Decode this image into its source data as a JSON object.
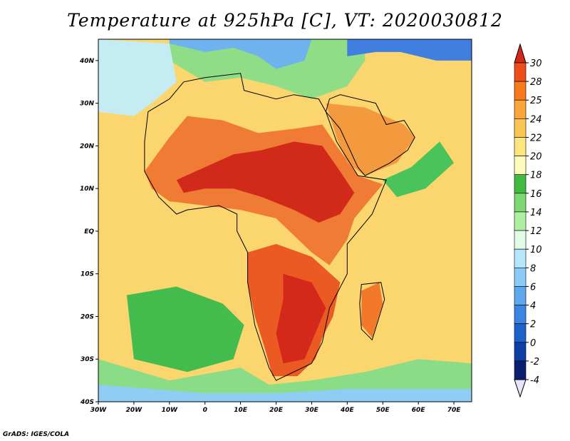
{
  "title": "Temperature at 925hPa [C], VT: 2020030812",
  "credit": "GrADS: IGES/COLA",
  "map": {
    "projection": "lat-lon",
    "lon_range": [
      -30,
      75
    ],
    "lat_range": [
      -40,
      45
    ],
    "lon_ticks": [
      {
        "value": -30,
        "label": "30W"
      },
      {
        "value": -20,
        "label": "20W"
      },
      {
        "value": -10,
        "label": "10W"
      },
      {
        "value": 0,
        "label": "0"
      },
      {
        "value": 10,
        "label": "10E"
      },
      {
        "value": 20,
        "label": "20E"
      },
      {
        "value": 30,
        "label": "30E"
      },
      {
        "value": 40,
        "label": "40E"
      },
      {
        "value": 50,
        "label": "50E"
      },
      {
        "value": 60,
        "label": "60E"
      },
      {
        "value": 70,
        "label": "70E"
      }
    ],
    "lat_ticks": [
      {
        "value": 40,
        "label": "40N"
      },
      {
        "value": 30,
        "label": "30N"
      },
      {
        "value": 20,
        "label": "20N"
      },
      {
        "value": 10,
        "label": "10N"
      },
      {
        "value": 0,
        "label": "EQ"
      },
      {
        "value": -10,
        "label": "10S"
      },
      {
        "value": -20,
        "label": "20S"
      },
      {
        "value": -30,
        "label": "30S"
      },
      {
        "value": -40,
        "label": "40S"
      }
    ],
    "background_color": "#fbd56e"
  },
  "colorbar": {
    "labels": [
      "30",
      "28",
      "25",
      "24",
      "22",
      "20",
      "18",
      "16",
      "14",
      "12",
      "10",
      "8",
      "6",
      "4",
      "2",
      "0",
      "-2",
      "-4"
    ],
    "colors": [
      "#d62818",
      "#ee4e1a",
      "#f77a1d",
      "#fba53a",
      "#fbc556",
      "#fde580",
      "#fffbbc",
      "#40bb3e",
      "#7bd873",
      "#aef0a2",
      "#e2fbe6",
      "#b5e6fb",
      "#8bcbf8",
      "#5ea9ee",
      "#3b86e2",
      "#1c62cb",
      "#0e3fa4",
      "#0b1f70",
      "#e6e4fa"
    ]
  },
  "regions": [
    {
      "name": "northern-africa-hot",
      "color": "#f07b34",
      "points": [
        [
          -17,
          14
        ],
        [
          -10,
          22
        ],
        [
          -5,
          27
        ],
        [
          5,
          26
        ],
        [
          15,
          23
        ],
        [
          25,
          24
        ],
        [
          33,
          25
        ],
        [
          37,
          20
        ],
        [
          43,
          13
        ],
        [
          50,
          11
        ],
        [
          42,
          3
        ],
        [
          40,
          -2
        ],
        [
          35,
          -8
        ],
        [
          30,
          -5
        ],
        [
          20,
          3
        ],
        [
          10,
          5
        ],
        [
          0,
          6
        ],
        [
          -10,
          7
        ],
        [
          -15,
          10
        ]
      ]
    },
    {
      "name": "sahel-core",
      "color": "#d22a1a",
      "points": [
        [
          -8,
          12
        ],
        [
          0,
          15
        ],
        [
          8,
          18
        ],
        [
          16,
          19
        ],
        [
          25,
          21
        ],
        [
          33,
          20
        ],
        [
          38,
          14
        ],
        [
          42,
          9
        ],
        [
          38,
          4
        ],
        [
          32,
          2
        ],
        [
          25,
          5
        ],
        [
          16,
          8
        ],
        [
          8,
          10
        ],
        [
          0,
          10
        ],
        [
          -6,
          9
        ]
      ]
    },
    {
      "name": "southern-africa-hot",
      "color": "#ec5a24",
      "points": [
        [
          12,
          -5
        ],
        [
          20,
          -3
        ],
        [
          30,
          -6
        ],
        [
          38,
          -12
        ],
        [
          36,
          -20
        ],
        [
          33,
          -25
        ],
        [
          31,
          -30
        ],
        [
          26,
          -34
        ],
        [
          19,
          -34
        ],
        [
          17,
          -28
        ],
        [
          14,
          -20
        ],
        [
          12,
          -12
        ]
      ]
    },
    {
      "name": "southern-interior-core",
      "color": "#d4281a",
      "points": [
        [
          22,
          -10
        ],
        [
          30,
          -12
        ],
        [
          34,
          -18
        ],
        [
          31,
          -24
        ],
        [
          28,
          -30
        ],
        [
          22,
          -31
        ],
        [
          20,
          -24
        ],
        [
          22,
          -16
        ]
      ]
    },
    {
      "name": "arabia-warm",
      "color": "#f49a3e",
      "points": [
        [
          34,
          30
        ],
        [
          45,
          29
        ],
        [
          56,
          25
        ],
        [
          59,
          22
        ],
        [
          54,
          16
        ],
        [
          45,
          13
        ],
        [
          40,
          16
        ],
        [
          37,
          22
        ]
      ]
    },
    {
      "name": "madagascar-warm",
      "color": "#f2792a",
      "points": [
        [
          44,
          -14
        ],
        [
          49,
          -12
        ],
        [
          50,
          -17
        ],
        [
          47,
          -25
        ],
        [
          44,
          -22
        ]
      ]
    },
    {
      "name": "south-atlantic-cool",
      "color": "#44bc4d",
      "points": [
        [
          -22,
          -15
        ],
        [
          -8,
          -13
        ],
        [
          5,
          -17
        ],
        [
          11,
          -22
        ],
        [
          8,
          -30
        ],
        [
          -5,
          -33
        ],
        [
          -20,
          -30
        ]
      ]
    },
    {
      "name": "southern-ocean-green",
      "color": "#8bdc86",
      "points": [
        [
          -30,
          -30
        ],
        [
          -10,
          -35
        ],
        [
          10,
          -32
        ],
        [
          18,
          -36
        ],
        [
          30,
          -35
        ],
        [
          45,
          -33
        ],
        [
          60,
          -30
        ],
        [
          75,
          -31
        ],
        [
          75,
          -40
        ],
        [
          -30,
          -40
        ]
      ]
    },
    {
      "name": "southern-ocean-cold",
      "color": "#8fcdf4",
      "points": [
        [
          -30,
          -36
        ],
        [
          0,
          -38
        ],
        [
          20,
          -38
        ],
        [
          40,
          -37
        ],
        [
          75,
          -37
        ],
        [
          75,
          -40
        ],
        [
          -30,
          -40
        ]
      ]
    },
    {
      "name": "mediterranean-green",
      "color": "#8fdd87",
      "points": [
        [
          -10,
          40
        ],
        [
          0,
          35
        ],
        [
          10,
          36
        ],
        [
          20,
          34
        ],
        [
          30,
          31
        ],
        [
          40,
          34
        ],
        [
          45,
          40
        ],
        [
          45,
          45
        ],
        [
          -10,
          45
        ]
      ]
    },
    {
      "name": "europe-cold",
      "color": "#6fb3ee",
      "points": [
        [
          -10,
          44
        ],
        [
          0,
          42
        ],
        [
          8,
          43
        ],
        [
          15,
          41
        ],
        [
          20,
          38
        ],
        [
          28,
          40
        ],
        [
          30,
          45
        ],
        [
          -10,
          45
        ]
      ]
    },
    {
      "name": "black-sea-cold",
      "color": "#3f7fe0",
      "points": [
        [
          40,
          41
        ],
        [
          48,
          42
        ],
        [
          55,
          42
        ],
        [
          65,
          40
        ],
        [
          75,
          40
        ],
        [
          75,
          45
        ],
        [
          40,
          45
        ]
      ]
    },
    {
      "name": "north-atlantic-cool",
      "color": "#c4ecf2",
      "points": [
        [
          -30,
          45
        ],
        [
          -10,
          44
        ],
        [
          -8,
          35
        ],
        [
          -15,
          30
        ],
        [
          -20,
          27
        ],
        [
          -30,
          28
        ]
      ]
    },
    {
      "name": "indian-ocean-green",
      "color": "#49c35a",
      "points": [
        [
          50,
          12
        ],
        [
          58,
          15
        ],
        [
          66,
          21
        ],
        [
          70,
          16
        ],
        [
          62,
          10
        ],
        [
          54,
          8
        ]
      ]
    }
  ],
  "land_outlines": [
    {
      "name": "africa-coast",
      "points": [
        [
          -17,
          21
        ],
        [
          -16,
          28
        ],
        [
          -10,
          31
        ],
        [
          -6,
          35
        ],
        [
          0,
          36
        ],
        [
          10,
          37
        ],
        [
          11,
          33
        ],
        [
          20,
          31
        ],
        [
          25,
          32
        ],
        [
          32,
          31
        ],
        [
          34,
          28
        ],
        [
          37,
          21
        ],
        [
          43,
          13
        ],
        [
          51,
          12
        ],
        [
          47,
          4
        ],
        [
          40,
          -3
        ],
        [
          40,
          -10
        ],
        [
          35,
          -18
        ],
        [
          33,
          -26
        ],
        [
          30,
          -31
        ],
        [
          20,
          -35
        ],
        [
          18,
          -32
        ],
        [
          14,
          -22
        ],
        [
          12,
          -12
        ],
        [
          12,
          -5
        ],
        [
          9,
          0
        ],
        [
          9,
          4
        ],
        [
          4,
          6
        ],
        [
          -5,
          5
        ],
        [
          -8,
          4
        ],
        [
          -13,
          8
        ],
        [
          -17,
          14
        ]
      ]
    },
    {
      "name": "madagascar-coast",
      "points": [
        [
          44,
          -12.5
        ],
        [
          49.5,
          -12
        ],
        [
          50.5,
          -16
        ],
        [
          47,
          -25.5
        ],
        [
          44,
          -23
        ],
        [
          43.5,
          -17
        ]
      ]
    },
    {
      "name": "arabia-coast",
      "points": [
        [
          34,
          28
        ],
        [
          38,
          24
        ],
        [
          43,
          15
        ],
        [
          45,
          13
        ],
        [
          52,
          16
        ],
        [
          57,
          19
        ],
        [
          59,
          22
        ],
        [
          56,
          26
        ],
        [
          51,
          25
        ],
        [
          48,
          30
        ],
        [
          38,
          32
        ],
        [
          35,
          31
        ]
      ]
    }
  ]
}
